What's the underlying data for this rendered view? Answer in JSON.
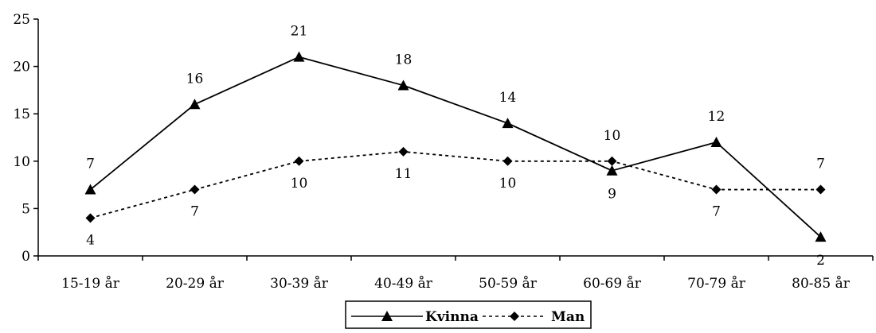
{
  "chart_data": {
    "type": "line",
    "categories": [
      "15-19 år",
      "20-29 år",
      "30-39 år",
      "40-49 år",
      "50-59 år",
      "60-69 år",
      "70-79 år",
      "80-85 år"
    ],
    "ylim": [
      0,
      25
    ],
    "yticks": [
      0,
      5,
      10,
      15,
      20,
      25
    ],
    "grid": false,
    "legend_position": "bottom",
    "series": [
      {
        "name": "Kvinna",
        "values": [
          7,
          16,
          21,
          18,
          14,
          9,
          12,
          2
        ],
        "line_style": "solid",
        "marker": "triangle",
        "color": "#000000"
      },
      {
        "name": "Man",
        "values": [
          4,
          7,
          10,
          11,
          10,
          10,
          7,
          7
        ],
        "line_style": "dotted",
        "marker": "diamond",
        "color": "#000000"
      }
    ]
  }
}
